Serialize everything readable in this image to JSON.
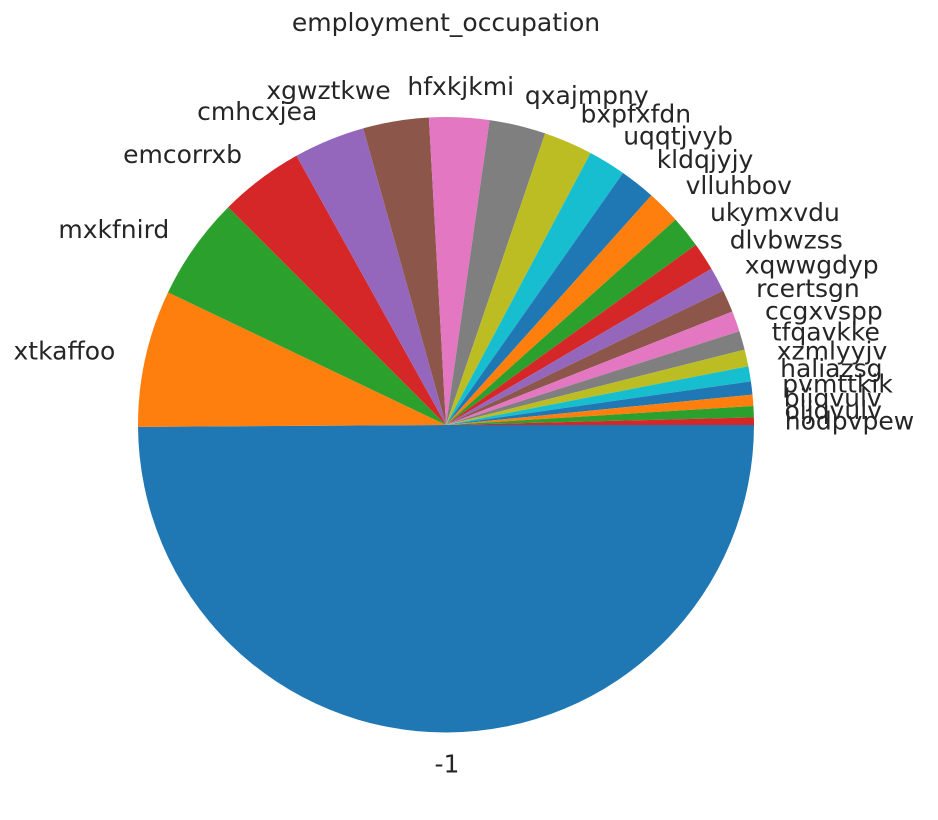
{
  "chart_data": {
    "type": "pie",
    "title": "employment_occupation",
    "start_angle_deg": 0,
    "direction": "clockwise",
    "labels": [
      "-1",
      "xtkaffoo",
      "mxkfnird",
      "emcorrxb",
      "cmhcxjea",
      "xgwztkwe",
      "hfxkjkmi",
      "qxajmpny",
      "bxpfxfdn",
      "uqqtjvyb",
      "kldqjyjy",
      "vlluhbov",
      "ukymxvdu",
      "dlvbwzss",
      "xqwwgdyp",
      "rcertsgn",
      "ccgxvspp",
      "tfqavkke",
      "xzmlyyjv",
      "haliazsg",
      "pvmttkik",
      "bijqvulv",
      "oijqvulv",
      "hodpvpew"
    ],
    "values": [
      50.7,
      7.3,
      5.5,
      4.5,
      3.8,
      3.5,
      3.2,
      3.0,
      2.6,
      2.0,
      1.9,
      1.8,
      1.7,
      1.5,
      1.3,
      1.2,
      1.1,
      1.0,
      0.9,
      0.8,
      0.7,
      0.6,
      0.6,
      0.4
    ],
    "colors": [
      "#1f77b4",
      "#ff7f0e",
      "#2ca02c",
      "#d62728",
      "#9467bd",
      "#8c564b",
      "#e377c2",
      "#7f7f7f",
      "#bcbd22",
      "#17becf",
      "#1f77b4",
      "#ff7f0e",
      "#2ca02c",
      "#d62728",
      "#9467bd",
      "#8c564b",
      "#e377c2",
      "#7f7f7f",
      "#bcbd22",
      "#17becf",
      "#1f77b4",
      "#ff7f0e",
      "#2ca02c",
      "#d62728"
    ]
  }
}
